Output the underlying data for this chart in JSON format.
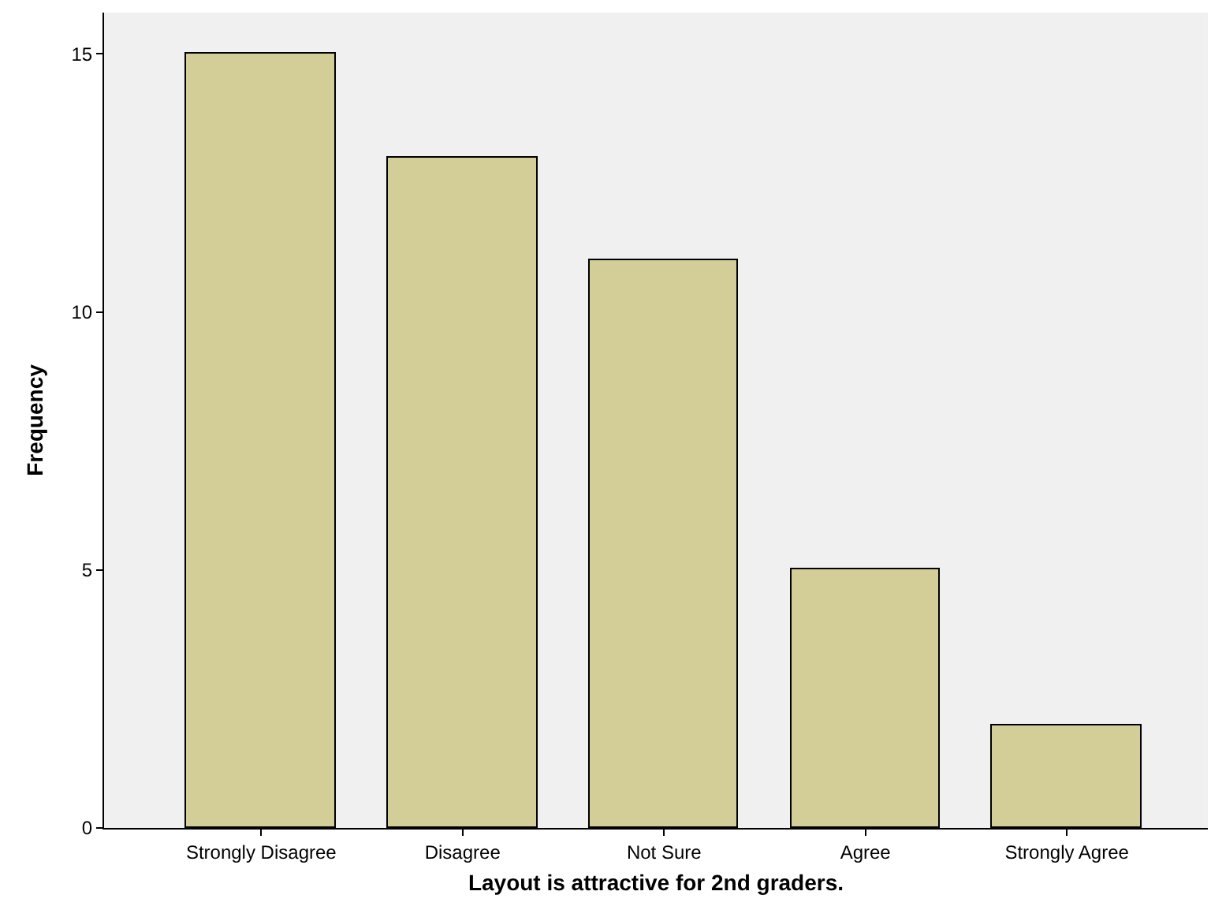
{
  "chart_data": {
    "type": "bar",
    "xlabel": "Layout is attractive for 2nd graders.",
    "ylabel": "Frequency",
    "categories": [
      "Strongly Disagree",
      "Disagree",
      "Not Sure",
      "Agree",
      "Strongly Agree"
    ],
    "values": [
      15,
      13,
      11,
      5,
      2
    ],
    "color": "#d3ce97",
    "ylim": [
      0,
      15.8
    ],
    "yticks": [
      0,
      5,
      10,
      15
    ],
    "grid": false
  }
}
